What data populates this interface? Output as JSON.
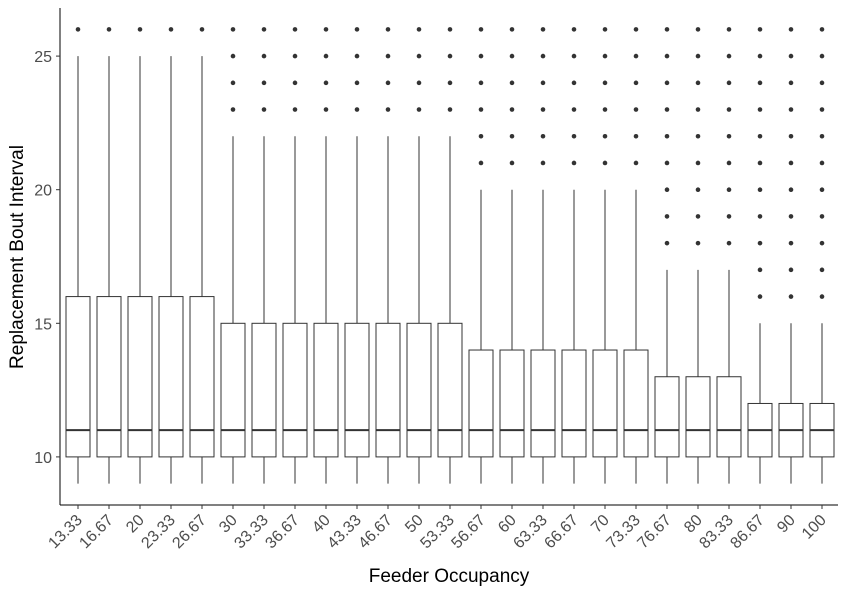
{
  "chart_data": {
    "type": "boxplot",
    "xlabel": "Feeder Occupancy",
    "ylabel": "Replacement Bout Interval",
    "ylim": [
      8.2,
      26.8
    ],
    "yticks": [
      10,
      15,
      20,
      25
    ],
    "grid": false,
    "legend": "none",
    "colors": {
      "box_stroke": "#333333",
      "box_fill": "#ffffff",
      "outlier": "#333333",
      "axis": "#000000",
      "tick_label": "#4d4d4d"
    },
    "categories": [
      "13.33",
      "16.67",
      "20",
      "23.33",
      "26.67",
      "30",
      "33.33",
      "36.67",
      "40",
      "43.33",
      "46.67",
      "50",
      "53.33",
      "56.67",
      "60",
      "63.33",
      "66.67",
      "70",
      "73.33",
      "76.67",
      "80",
      "83.33",
      "86.67",
      "90",
      "100"
    ],
    "boxes": [
      {
        "whisker_low": 9,
        "q1": 10,
        "median": 11,
        "q3": 16,
        "whisker_high": 25,
        "outliers": [
          26
        ]
      },
      {
        "whisker_low": 9,
        "q1": 10,
        "median": 11,
        "q3": 16,
        "whisker_high": 25,
        "outliers": [
          26
        ]
      },
      {
        "whisker_low": 9,
        "q1": 10,
        "median": 11,
        "q3": 16,
        "whisker_high": 25,
        "outliers": [
          26
        ]
      },
      {
        "whisker_low": 9,
        "q1": 10,
        "median": 11,
        "q3": 16,
        "whisker_high": 25,
        "outliers": [
          26
        ]
      },
      {
        "whisker_low": 9,
        "q1": 10,
        "median": 11,
        "q3": 16,
        "whisker_high": 25,
        "outliers": [
          26
        ]
      },
      {
        "whisker_low": 9,
        "q1": 10,
        "median": 11,
        "q3": 15,
        "whisker_high": 22,
        "outliers": [
          23,
          24,
          25,
          26
        ]
      },
      {
        "whisker_low": 9,
        "q1": 10,
        "median": 11,
        "q3": 15,
        "whisker_high": 22,
        "outliers": [
          23,
          24,
          25,
          26
        ]
      },
      {
        "whisker_low": 9,
        "q1": 10,
        "median": 11,
        "q3": 15,
        "whisker_high": 22,
        "outliers": [
          23,
          24,
          25,
          26
        ]
      },
      {
        "whisker_low": 9,
        "q1": 10,
        "median": 11,
        "q3": 15,
        "whisker_high": 22,
        "outliers": [
          23,
          24,
          25,
          26
        ]
      },
      {
        "whisker_low": 9,
        "q1": 10,
        "median": 11,
        "q3": 15,
        "whisker_high": 22,
        "outliers": [
          23,
          24,
          25,
          26
        ]
      },
      {
        "whisker_low": 9,
        "q1": 10,
        "median": 11,
        "q3": 15,
        "whisker_high": 22,
        "outliers": [
          23,
          24,
          25,
          26
        ]
      },
      {
        "whisker_low": 9,
        "q1": 10,
        "median": 11,
        "q3": 15,
        "whisker_high": 22,
        "outliers": [
          23,
          24,
          25,
          26
        ]
      },
      {
        "whisker_low": 9,
        "q1": 10,
        "median": 11,
        "q3": 15,
        "whisker_high": 22,
        "outliers": [
          23,
          24,
          25,
          26
        ]
      },
      {
        "whisker_low": 9,
        "q1": 10,
        "median": 11,
        "q3": 14,
        "whisker_high": 20,
        "outliers": [
          21,
          22,
          23,
          24,
          25,
          26
        ]
      },
      {
        "whisker_low": 9,
        "q1": 10,
        "median": 11,
        "q3": 14,
        "whisker_high": 20,
        "outliers": [
          21,
          22,
          23,
          24,
          25,
          26
        ]
      },
      {
        "whisker_low": 9,
        "q1": 10,
        "median": 11,
        "q3": 14,
        "whisker_high": 20,
        "outliers": [
          21,
          22,
          23,
          24,
          25,
          26
        ]
      },
      {
        "whisker_low": 9,
        "q1": 10,
        "median": 11,
        "q3": 14,
        "whisker_high": 20,
        "outliers": [
          21,
          22,
          23,
          24,
          25,
          26
        ]
      },
      {
        "whisker_low": 9,
        "q1": 10,
        "median": 11,
        "q3": 14,
        "whisker_high": 20,
        "outliers": [
          21,
          22,
          23,
          24,
          25,
          26
        ]
      },
      {
        "whisker_low": 9,
        "q1": 10,
        "median": 11,
        "q3": 14,
        "whisker_high": 20,
        "outliers": [
          21,
          22,
          23,
          24,
          25,
          26
        ]
      },
      {
        "whisker_low": 9,
        "q1": 10,
        "median": 11,
        "q3": 13,
        "whisker_high": 17,
        "outliers": [
          18,
          19,
          20,
          21,
          22,
          23,
          24,
          25,
          26
        ]
      },
      {
        "whisker_low": 9,
        "q1": 10,
        "median": 11,
        "q3": 13,
        "whisker_high": 17,
        "outliers": [
          18,
          19,
          20,
          21,
          22,
          23,
          24,
          25,
          26
        ]
      },
      {
        "whisker_low": 9,
        "q1": 10,
        "median": 11,
        "q3": 13,
        "whisker_high": 17,
        "outliers": [
          18,
          19,
          20,
          21,
          22,
          23,
          24,
          25,
          26
        ]
      },
      {
        "whisker_low": 9,
        "q1": 10,
        "median": 11,
        "q3": 12,
        "whisker_high": 15,
        "outliers": [
          16,
          17,
          18,
          19,
          20,
          21,
          22,
          23,
          24,
          25,
          26
        ]
      },
      {
        "whisker_low": 9,
        "q1": 10,
        "median": 11,
        "q3": 12,
        "whisker_high": 15,
        "outliers": [
          16,
          17,
          18,
          19,
          20,
          21,
          22,
          23,
          24,
          25,
          26
        ]
      },
      {
        "whisker_low": 9,
        "q1": 10,
        "median": 11,
        "q3": 12,
        "whisker_high": 15,
        "outliers": [
          16,
          17,
          18,
          19,
          20,
          21,
          22,
          23,
          24,
          25,
          26
        ]
      }
    ]
  }
}
